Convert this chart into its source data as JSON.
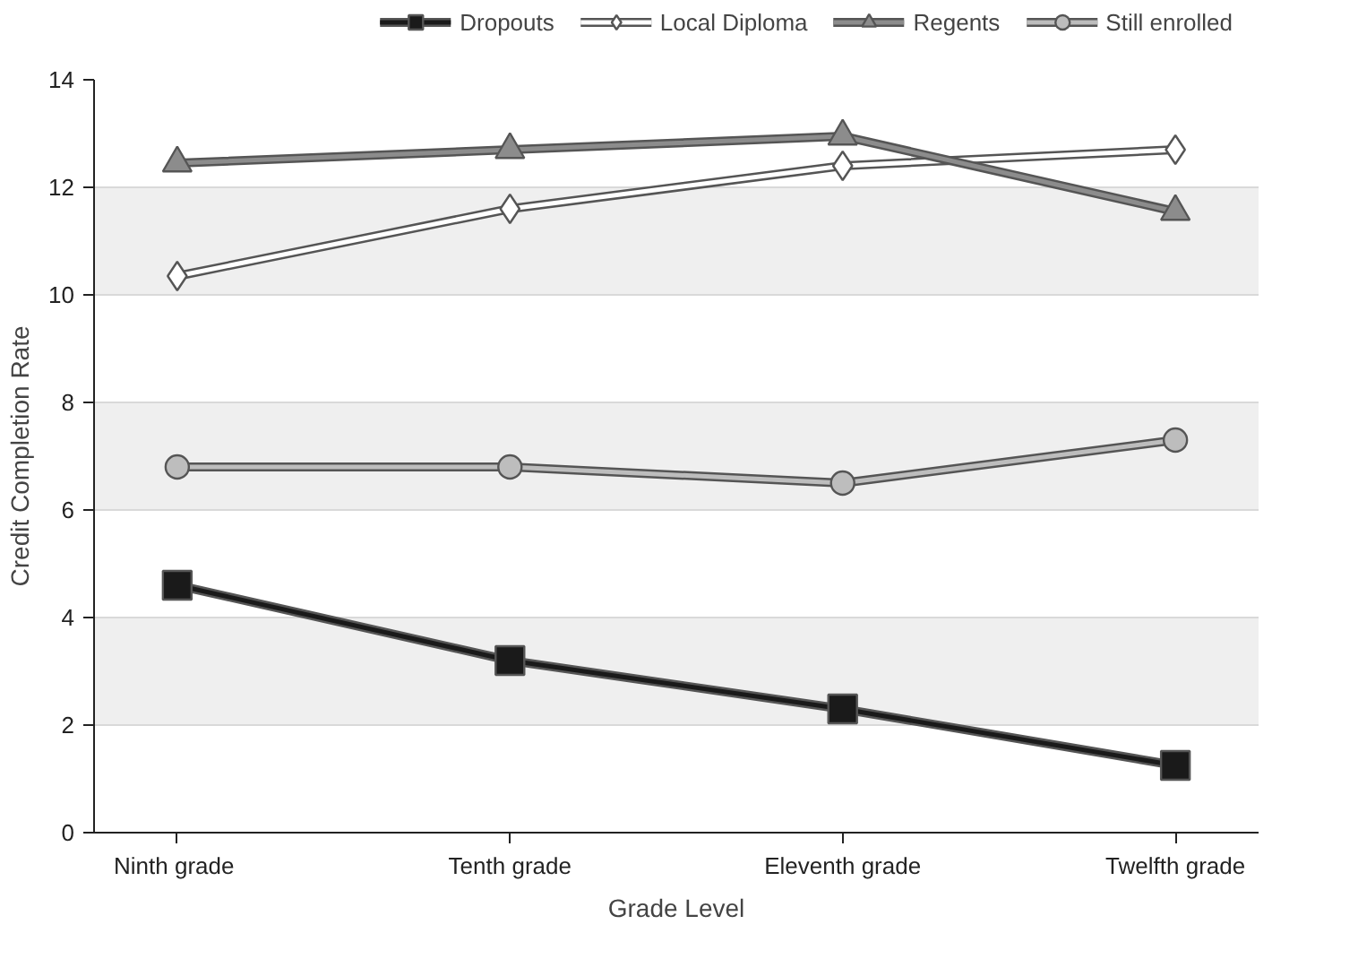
{
  "chart_data": {
    "type": "line",
    "xlabel": "Grade Level",
    "ylabel": "Credit Completion Rate",
    "categories": [
      "Ninth  grade",
      "Tenth grade",
      "Eleventh grade",
      "Twelfth grade"
    ],
    "ylim": [
      0,
      14
    ],
    "yticks": [
      0,
      2,
      4,
      6,
      8,
      10,
      12,
      14
    ],
    "grid": "y",
    "legend": "top",
    "series": [
      {
        "name": "Dropouts",
        "color": "#1a1a1a",
        "marker": "square",
        "values": [
          4.6,
          3.2,
          2.3,
          1.25
        ]
      },
      {
        "name": "Local Diploma",
        "color": "#ffffff",
        "marker": "diamond",
        "values": [
          10.35,
          11.6,
          12.4,
          12.7
        ]
      },
      {
        "name": "Regents",
        "color": "#8c8c8c",
        "marker": "triangle",
        "values": [
          12.45,
          12.7,
          12.95,
          11.55
        ]
      },
      {
        "name": "Still enrolled",
        "color": "#bdbdbd",
        "marker": "circle",
        "values": [
          6.8,
          6.8,
          6.5,
          7.3
        ]
      }
    ]
  }
}
